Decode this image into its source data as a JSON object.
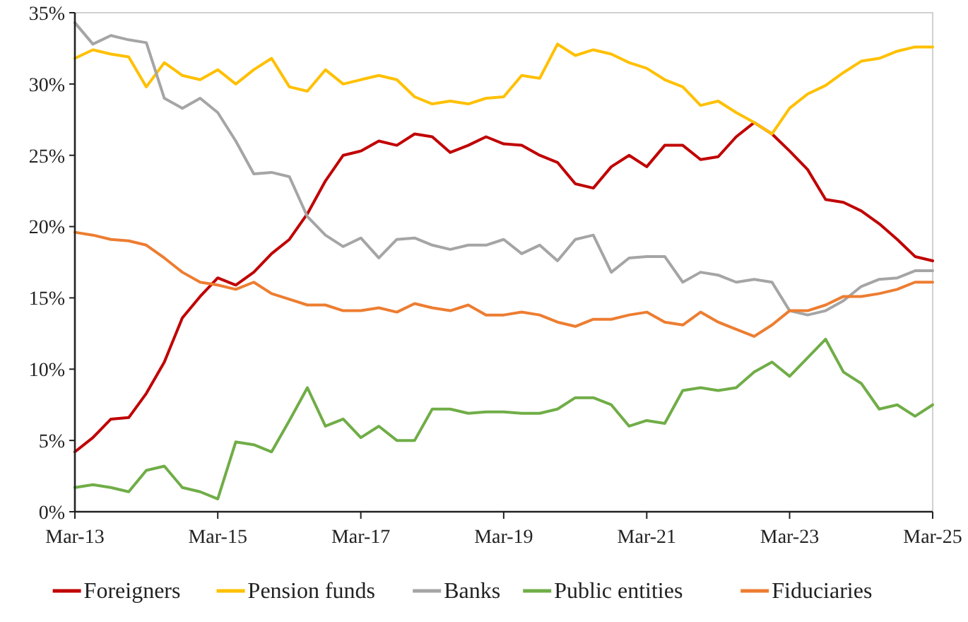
{
  "chart_data": {
    "type": "line",
    "x": [
      "2013-03",
      "2013-06",
      "2013-09",
      "2013-12",
      "2014-03",
      "2014-06",
      "2014-09",
      "2014-12",
      "2015-03",
      "2015-06",
      "2015-09",
      "2015-12",
      "2016-03",
      "2016-06",
      "2016-09",
      "2016-12",
      "2017-03",
      "2017-06",
      "2017-09",
      "2017-12",
      "2018-03",
      "2018-06",
      "2018-09",
      "2018-12",
      "2019-03",
      "2019-06",
      "2019-09",
      "2019-12",
      "2020-03",
      "2020-06",
      "2020-09",
      "2020-12",
      "2021-03",
      "2021-06",
      "2021-09",
      "2021-12",
      "2022-03",
      "2022-06",
      "2022-09",
      "2022-12",
      "2023-03",
      "2023-06",
      "2023-09",
      "2023-12",
      "2024-03",
      "2024-06",
      "2024-09",
      "2024-12",
      "2025-03"
    ],
    "series": [
      {
        "name": "Foreigners",
        "color": "#c00000",
        "values": [
          4.2,
          5.2,
          6.5,
          6.6,
          8.3,
          10.5,
          13.6,
          15.1,
          16.4,
          15.9,
          16.8,
          18.1,
          19.1,
          20.9,
          23.2,
          25.0,
          25.3,
          26.0,
          25.7,
          26.5,
          26.3,
          25.2,
          25.7,
          26.3,
          25.8,
          25.7,
          25.0,
          24.5,
          23.0,
          22.7,
          24.2,
          25.0,
          24.2,
          25.7,
          25.7,
          24.7,
          24.9,
          26.3,
          27.3,
          26.5,
          25.3,
          24.0,
          21.9,
          21.7,
          21.1,
          20.2,
          19.1,
          17.9,
          17.6
        ]
      },
      {
        "name": "Pension funds",
        "color": "#ffc000",
        "values": [
          31.8,
          32.4,
          32.1,
          31.9,
          29.8,
          31.5,
          30.6,
          30.3,
          31.0,
          30.0,
          31.0,
          31.8,
          29.8,
          29.5,
          31.0,
          30.0,
          30.3,
          30.6,
          30.3,
          29.1,
          28.6,
          28.8,
          28.6,
          29.0,
          29.1,
          30.6,
          30.4,
          32.8,
          32.0,
          32.4,
          32.1,
          31.5,
          31.1,
          30.3,
          29.8,
          28.5,
          28.8,
          28.0,
          27.3,
          26.5,
          28.3,
          29.3,
          29.9,
          30.8,
          31.6,
          31.8,
          32.3,
          32.6,
          32.6
        ]
      },
      {
        "name": "Banks",
        "color": "#a5a5a5",
        "values": [
          34.3,
          32.8,
          33.4,
          33.1,
          32.9,
          29.0,
          28.3,
          29.0,
          28.0,
          26.0,
          23.7,
          23.8,
          23.5,
          20.7,
          19.4,
          18.6,
          19.2,
          17.8,
          19.1,
          19.2,
          18.7,
          18.4,
          18.7,
          18.7,
          19.1,
          18.1,
          18.7,
          17.6,
          19.1,
          19.4,
          16.8,
          17.8,
          17.9,
          17.9,
          16.1,
          16.8,
          16.6,
          16.1,
          16.3,
          16.1,
          14.1,
          13.8,
          14.1,
          14.8,
          15.8,
          16.3,
          16.4,
          16.9,
          16.9
        ]
      },
      {
        "name": "Public entities",
        "color": "#70ad47",
        "values": [
          1.7,
          1.9,
          1.7,
          1.4,
          2.9,
          3.2,
          1.7,
          1.4,
          0.9,
          4.9,
          4.7,
          4.2,
          6.4,
          8.7,
          6.0,
          6.5,
          5.2,
          6.0,
          5.0,
          5.0,
          7.2,
          7.2,
          6.9,
          7.0,
          7.0,
          6.9,
          6.9,
          7.2,
          8.0,
          8.0,
          7.5,
          6.0,
          6.4,
          6.2,
          8.5,
          8.7,
          8.5,
          8.7,
          9.8,
          10.5,
          9.5,
          10.8,
          12.1,
          9.8,
          9.0,
          7.2,
          7.5,
          6.7,
          7.5
        ]
      },
      {
        "name": "Fiduciaries",
        "color": "#ed7d31",
        "values": [
          19.6,
          19.4,
          19.1,
          19.0,
          18.7,
          17.8,
          16.8,
          16.1,
          15.9,
          15.6,
          16.1,
          15.3,
          14.9,
          14.5,
          14.5,
          14.1,
          14.1,
          14.3,
          14.0,
          14.6,
          14.3,
          14.1,
          14.5,
          13.8,
          13.8,
          14.0,
          13.8,
          13.3,
          13.0,
          13.5,
          13.5,
          13.8,
          14.0,
          13.3,
          13.1,
          14.0,
          13.3,
          12.8,
          12.3,
          13.1,
          14.1,
          14.1,
          14.5,
          15.1,
          15.1,
          15.3,
          15.6,
          16.1,
          16.1
        ]
      }
    ],
    "xlim": [
      "2013-03",
      "2025-03"
    ],
    "xticks": [
      {
        "value": "2013-03",
        "label": "Mar-13"
      },
      {
        "value": "2015-03",
        "label": "Mar-15"
      },
      {
        "value": "2017-03",
        "label": "Mar-17"
      },
      {
        "value": "2019-03",
        "label": "Mar-19"
      },
      {
        "value": "2021-03",
        "label": "Mar-21"
      },
      {
        "value": "2023-03",
        "label": "Mar-23"
      },
      {
        "value": "2025-03",
        "label": "Mar-25"
      }
    ],
    "ylim": [
      0,
      35
    ],
    "yticks": [
      {
        "value": 0,
        "label": "0%"
      },
      {
        "value": 5,
        "label": "5%"
      },
      {
        "value": 10,
        "label": "10%"
      },
      {
        "value": 15,
        "label": "15%"
      },
      {
        "value": 20,
        "label": "20%"
      },
      {
        "value": 25,
        "label": "25%"
      },
      {
        "value": 30,
        "label": "30%"
      },
      {
        "value": 35,
        "label": "35%"
      }
    ],
    "grid": false,
    "legend": "bottom",
    "marker": "none",
    "line_style": "solid"
  }
}
